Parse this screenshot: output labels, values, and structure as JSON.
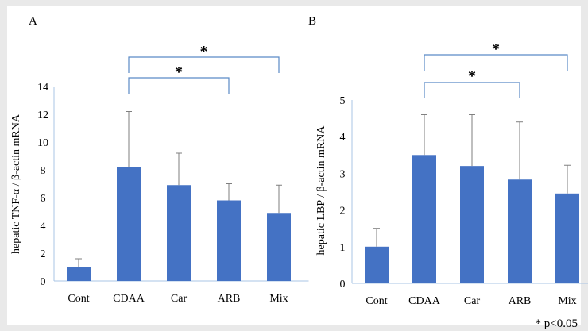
{
  "colors": {
    "bar": "#4472c4",
    "bracket": "#5a8ac6",
    "axis": "#a9c4e4",
    "background": "#e9e9e9",
    "panel": "#ffffff",
    "text": "#000000"
  },
  "footnote": "* p<0.05",
  "chart_data": [
    {
      "type": "bar",
      "panel_label": "A",
      "ylabel": "hepatic TNF-α / β-actin mRNA",
      "categories": [
        "Cont",
        "CDAA",
        "Car",
        "ARB",
        "Mix"
      ],
      "values": [
        1.0,
        8.2,
        6.9,
        5.8,
        4.9
      ],
      "error_upper": [
        1.6,
        12.2,
        9.2,
        7.0,
        6.9
      ],
      "ylim": [
        0,
        14
      ],
      "yticks": [
        "0",
        "2",
        "4",
        "6",
        "8",
        "10",
        "12",
        "14"
      ],
      "significance": [
        {
          "from": "CDAA",
          "to": "ARB",
          "mark": "*"
        },
        {
          "from": "CDAA",
          "to": "Mix",
          "mark": "*"
        }
      ]
    },
    {
      "type": "bar",
      "panel_label": "B",
      "ylabel": "hepatic LBP / β-actin mRNA",
      "categories": [
        "Cont",
        "CDAA",
        "Car",
        "ARB",
        "Mix"
      ],
      "values": [
        1.0,
        3.5,
        3.2,
        2.83,
        2.45
      ],
      "error_upper": [
        1.5,
        4.6,
        4.6,
        4.4,
        3.22
      ],
      "ylim": [
        0,
        5
      ],
      "yticks": [
        "0",
        "1",
        "2",
        "3",
        "4",
        "5"
      ],
      "significance": [
        {
          "from": "CDAA",
          "to": "ARB",
          "mark": "*"
        },
        {
          "from": "CDAA",
          "to": "Mix",
          "mark": "*"
        }
      ]
    }
  ]
}
